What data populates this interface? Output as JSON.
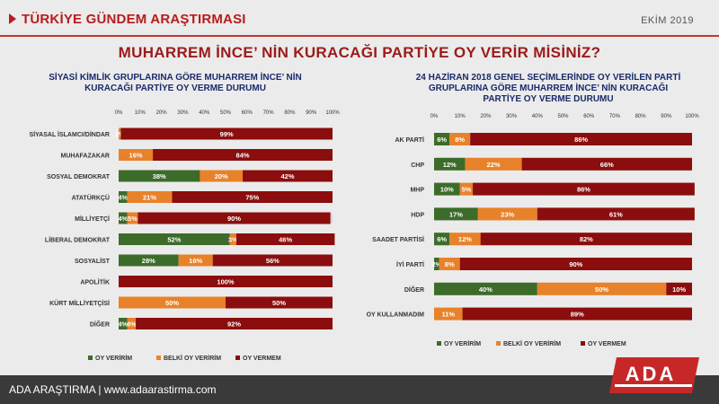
{
  "header": {
    "brand_title": "TÜRKİYE GÜNDEM ARAŞTIRMASI",
    "date": "EKİM 2019",
    "main_title": "MUHARREM İNCE’ NİN KURACAĞI PARTİYE OY VERİR MİSİNİZ?"
  },
  "footer": {
    "text": "ADA ARAŞTIRMA |   www.adaarastirma.com",
    "logo_text": "ADA"
  },
  "colors": {
    "oy_veririm": "#3d6b2a",
    "belki": "#e8822a",
    "oy_vermem": "#8b0d0d",
    "track": "#d6d6d6"
  },
  "chart_data": [
    {
      "type": "bar",
      "stacked": true,
      "orientation": "horizontal",
      "title": "SİYASİ KİMLİK GRUPLARINA GÖRE MUHARREM İNCE’ NİN KURACAĞI PARTİYE OY VERME DURUMU",
      "title_lines": [
        "SİYASİ KİMLİK GRUPLARINA GÖRE MUHARREM İNCE’ NİN",
        "KURACAĞI PARTİYE OY VERME DURUMU"
      ],
      "xlim": [
        0,
        100
      ],
      "ticks": [
        "0%",
        "10%",
        "20%",
        "30%",
        "40%",
        "50%",
        "60%",
        "70%",
        "80%",
        "90%",
        "100%"
      ],
      "legend_position": "bottom",
      "categories": [
        "SİYASAL İSLAMCI/DİNDAR",
        "MUHAFAZAKAR",
        "SOSYAL DEMOKRAT",
        "ATATÜRKÇÜ",
        "MİLLİYETÇİ",
        "LİBERAL DEMOKRAT",
        "SOSYALİST",
        "APOLİTİK",
        "KÜRT MİLLİYETÇİSİ",
        "DİĞER"
      ],
      "series": [
        {
          "name": "OY VERİRİM",
          "values": [
            0,
            0,
            38,
            4,
            4,
            52,
            28,
            0,
            0,
            4
          ]
        },
        {
          "name": "BELKİ OY VERİRİM",
          "values": [
            1,
            16,
            20,
            21,
            5,
            3,
            16,
            0,
            50,
            4
          ]
        },
        {
          "name": "OY VERMEM",
          "values": [
            99,
            84,
            42,
            75,
            90,
            46,
            56,
            100,
            50,
            92
          ]
        }
      ]
    },
    {
      "type": "bar",
      "stacked": true,
      "orientation": "horizontal",
      "title": "24 HAZİRAN 2018 GENEL SEÇİMLERİNDE OY VERİLEN PARTİ GRUPLARINA GÖRE MUHARREM İNCE’ NİN KURACAĞI PARTİYE OY VERME DURUMU",
      "title_lines": [
        "24 HAZİRAN 2018 GENEL SEÇİMLERİNDE OY VERİLEN PARTİ",
        "GRUPLARINA GÖRE MUHARREM İNCE’ NİN KURACAĞI",
        "PARTİYE OY VERME DURUMU"
      ],
      "xlim": [
        0,
        100
      ],
      "ticks": [
        "0%",
        "10%",
        "20%",
        "30%",
        "40%",
        "50%",
        "60%",
        "70%",
        "80%",
        "90%",
        "100%"
      ],
      "legend_position": "bottom",
      "categories": [
        "AK PARTİ",
        "CHP",
        "MHP",
        "HDP",
        "SAADET PARTİSİ",
        "İYİ PARTİ",
        "DİĞER",
        "OY KULLANMADIM"
      ],
      "series": [
        {
          "name": "OY VERİRİM",
          "values": [
            6,
            12,
            10,
            17,
            6,
            2,
            40,
            0
          ]
        },
        {
          "name": "BELKİ OY VERİRİM",
          "values": [
            8,
            22,
            5,
            23,
            12,
            8,
            50,
            11
          ]
        },
        {
          "name": "OY VERMEM",
          "values": [
            86,
            66,
            86,
            61,
            82,
            90,
            10,
            89
          ]
        }
      ]
    }
  ]
}
